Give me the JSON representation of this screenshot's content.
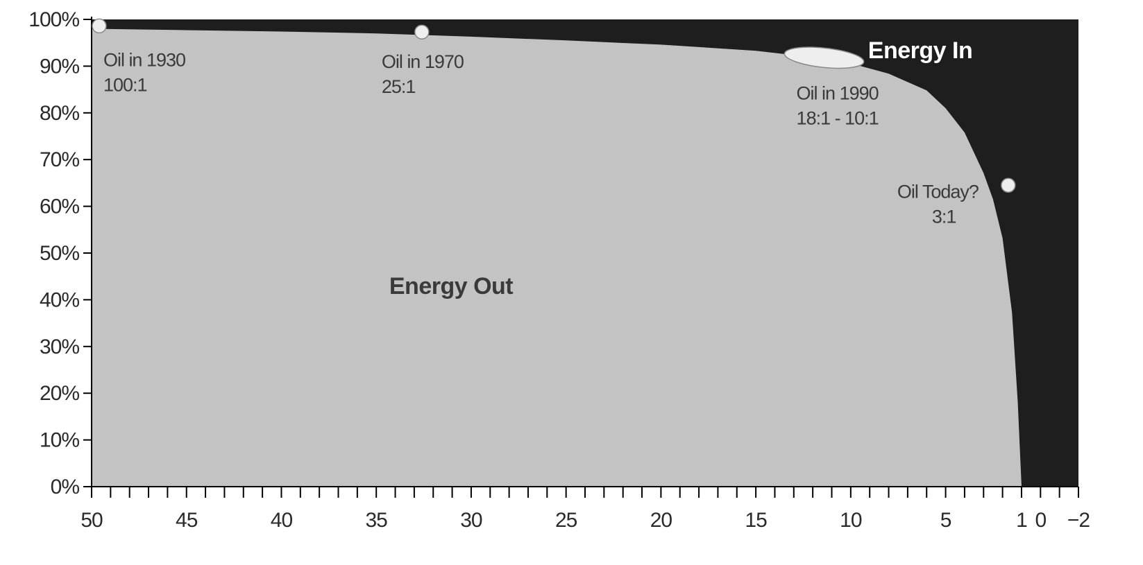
{
  "chart_data": {
    "type": "area",
    "title": "",
    "xlabel": "",
    "ylabel": "",
    "x_axis": {
      "min": -2,
      "max": 50,
      "reversed": true,
      "tick_labels": [
        "50",
        "45",
        "40",
        "35",
        "30",
        "25",
        "20",
        "15",
        "10",
        "5",
        "1",
        "0",
        "−2"
      ],
      "tick_values": [
        50,
        45,
        40,
        35,
        30,
        25,
        20,
        15,
        10,
        5,
        1,
        0,
        -2
      ],
      "minor_tick_step": 1
    },
    "y_axis": {
      "min": 0,
      "max": 100,
      "tick_labels": [
        "0%",
        "10%",
        "20%",
        "30%",
        "40%",
        "50%",
        "60%",
        "70%",
        "80%",
        "90%",
        "100%"
      ],
      "tick_values": [
        0,
        10,
        20,
        30,
        40,
        50,
        60,
        70,
        80,
        90,
        100
      ]
    },
    "grid": false,
    "series": [
      {
        "name": "Energy Out",
        "color": "#c3c3c3",
        "x": [
          50,
          45,
          40,
          35,
          30,
          25,
          20,
          15,
          12,
          10,
          8,
          6,
          5,
          4,
          3,
          2.5,
          2,
          1.5,
          1.2,
          1
        ],
        "y": [
          98,
          97.7,
          97.4,
          97,
          96.3,
          95.5,
          94.6,
          93.3,
          91.9,
          90.6,
          88.4,
          84.8,
          81,
          75.8,
          67.1,
          61.5,
          53.2,
          37.2,
          18.2,
          0
        ]
      },
      {
        "name": "Energy In",
        "color": "#1e1e1e",
        "x": [
          50,
          45,
          40,
          35,
          30,
          25,
          20,
          15,
          12,
          10,
          8,
          6,
          5,
          4,
          3,
          2.5,
          2,
          1.5,
          1.2,
          1
        ],
        "y": [
          2,
          2.3,
          2.6,
          3,
          3.7,
          4.5,
          5.4,
          6.7,
          8.1,
          9.4,
          11.6,
          15.2,
          19,
          24.2,
          32.9,
          38.5,
          46.8,
          62.8,
          81.8,
          100
        ]
      }
    ],
    "annotations": [
      {
        "lines": [
          "Oil in 1930",
          "100:1"
        ],
        "x": 49.6,
        "y": 98.6,
        "marker": "circle"
      },
      {
        "lines": [
          "Oil in 1970",
          "25:1"
        ],
        "x": 32.6,
        "y": 97.3,
        "marker": "circle"
      },
      {
        "lines": [
          "Oil in 1990",
          "18:1 - 10:1"
        ],
        "x_range": [
          13.5,
          9.3
        ],
        "y": 91.8,
        "marker": "ellipse"
      },
      {
        "lines": [
          "Oil Today?",
          "3:1"
        ],
        "x": 1.7,
        "y": 64.5,
        "marker": "circle"
      }
    ],
    "region_labels": [
      {
        "text": "Energy Out",
        "series": "Energy Out",
        "color": "#3a3a3a"
      },
      {
        "text": "Energy In",
        "series": "Energy In",
        "color": "#ffffff"
      }
    ]
  }
}
